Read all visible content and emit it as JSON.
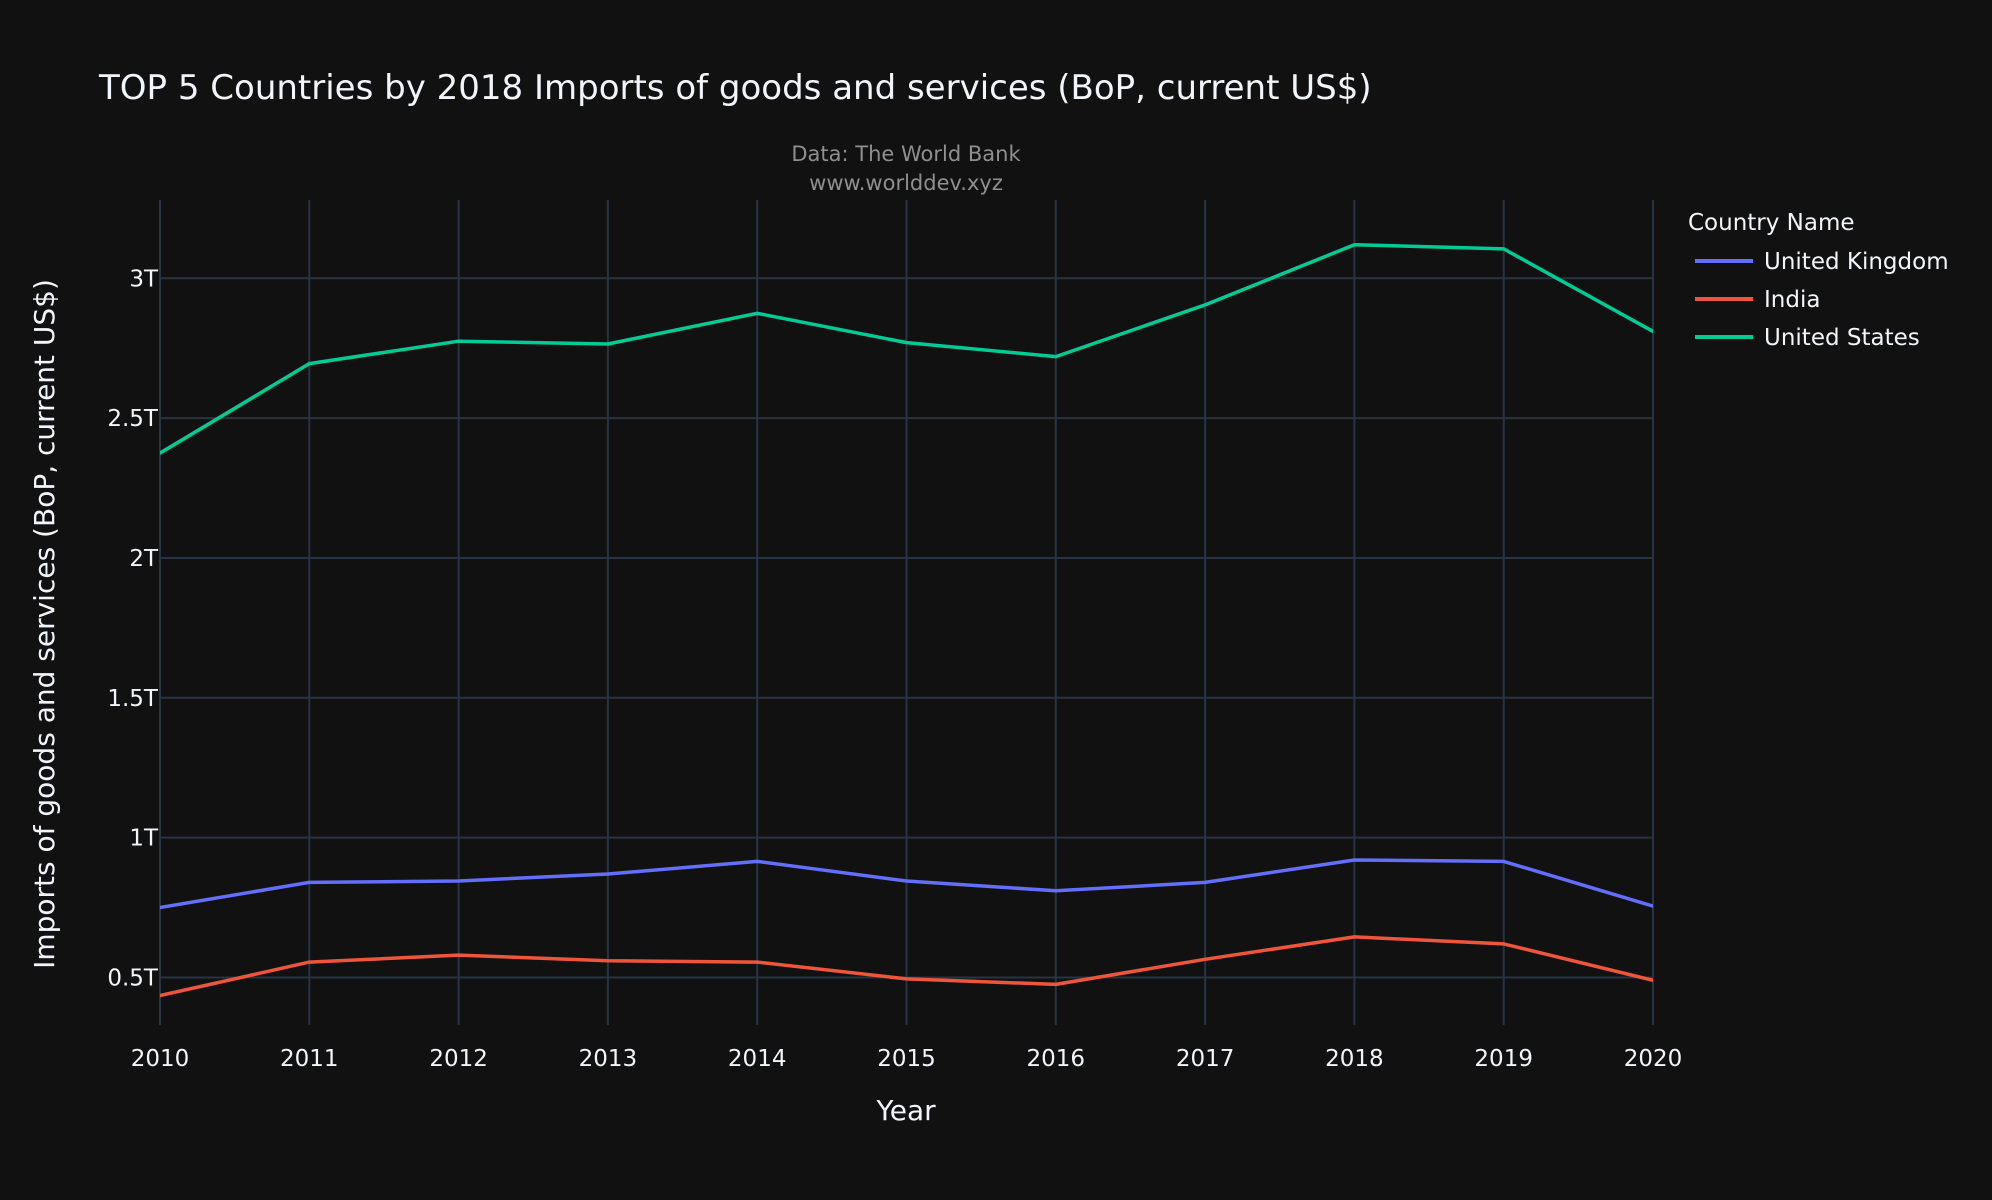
{
  "chart_data": {
    "type": "line",
    "title": "TOP 5 Countries by 2018 Imports of goods and services (BoP, current US$)",
    "subtitle_lines": [
      "Data: The World Bank",
      "www.worlddev.xyz"
    ],
    "xlabel": "Year",
    "ylabel": "Imports of goods and services (BoP, current US$)",
    "x": [
      2010,
      2011,
      2012,
      2013,
      2014,
      2015,
      2016,
      2017,
      2018,
      2019,
      2020
    ],
    "xlim": [
      2010,
      2020
    ],
    "ylim": [
      0.33,
      3.28
    ],
    "y_unit": "trillion US$",
    "y_ticks": [
      {
        "value": 0.5,
        "label": "0.5T"
      },
      {
        "value": 1,
        "label": "1T"
      },
      {
        "value": 1.5,
        "label": "1.5T"
      },
      {
        "value": 2,
        "label": "2T"
      },
      {
        "value": 2.5,
        "label": "2.5T"
      },
      {
        "value": 3,
        "label": "3T"
      }
    ],
    "grid": true,
    "legend": {
      "title": "Country Name",
      "position": "top-right, outside plot"
    },
    "series": [
      {
        "name": "United Kingdom",
        "color": "#636efa",
        "values": [
          0.75,
          0.84,
          0.845,
          0.87,
          0.915,
          0.845,
          0.81,
          0.84,
          0.92,
          0.915,
          0.755
        ]
      },
      {
        "name": "India",
        "color": "#ef553b",
        "values": [
          0.435,
          0.555,
          0.58,
          0.56,
          0.555,
          0.495,
          0.475,
          0.565,
          0.645,
          0.62,
          0.49
        ]
      },
      {
        "name": "United States",
        "color": "#00cc96",
        "values": [
          2.375,
          2.695,
          2.775,
          2.765,
          2.875,
          2.77,
          2.72,
          2.905,
          3.12,
          3.105,
          2.81
        ]
      }
    ]
  }
}
